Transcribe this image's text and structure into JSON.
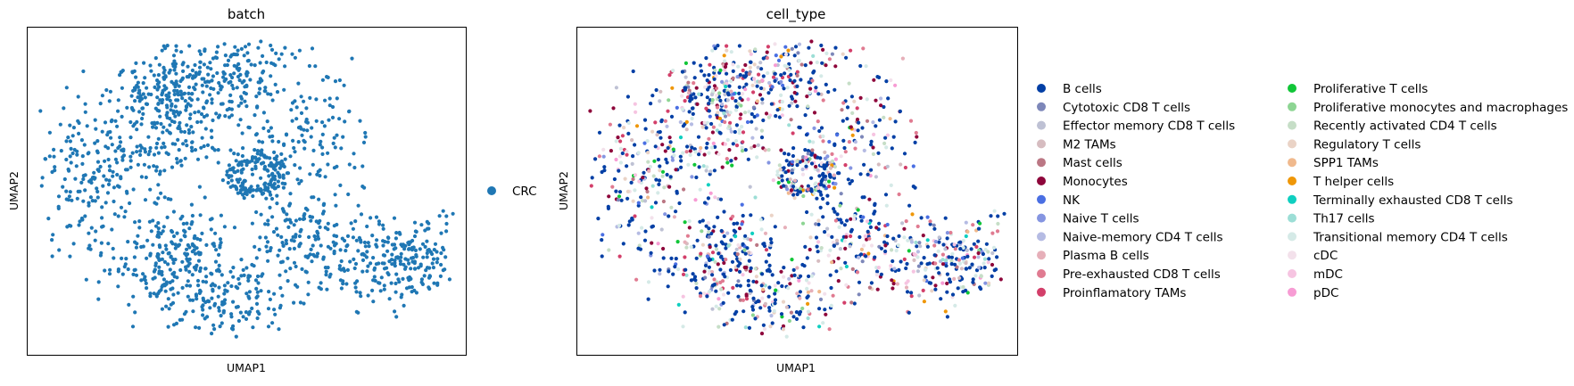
{
  "chart_data": [
    {
      "type": "scatter",
      "title": "batch",
      "xlabel": "UMAP1",
      "ylabel": "UMAP2",
      "grid": false,
      "legend": {
        "placement": "right",
        "entries": [
          {
            "label": "CRC",
            "color": "#1f77b4"
          }
        ]
      }
    },
    {
      "type": "scatter",
      "title": "cell_type",
      "xlabel": "UMAP1",
      "ylabel": "UMAP2",
      "grid": false,
      "legend": {
        "placement": "right",
        "columns": 2,
        "entries": [
          {
            "label": "B cells",
            "color": "#023fa5"
          },
          {
            "label": "Cytotoxic CD8 T cells",
            "color": "#7d87b9"
          },
          {
            "label": "Effector memory CD8 T cells",
            "color": "#bec1d4"
          },
          {
            "label": "M2 TAMs",
            "color": "#d6bcc0"
          },
          {
            "label": "Mast cells",
            "color": "#bb7784"
          },
          {
            "label": "Monocytes",
            "color": "#8e063b"
          },
          {
            "label": "NK",
            "color": "#4a6fe3"
          },
          {
            "label": "Naive T cells",
            "color": "#8595e1"
          },
          {
            "label": "Naive-memory CD4 T cells",
            "color": "#b5bbe3"
          },
          {
            "label": "Plasma B cells",
            "color": "#e6afb9"
          },
          {
            "label": "Pre-exhausted CD8 T cells",
            "color": "#e07b91"
          },
          {
            "label": "Proinflamatory TAMs",
            "color": "#d33f6a"
          },
          {
            "label": "Proliferative T cells",
            "color": "#11c638"
          },
          {
            "label": "Proliferative monocytes and macrophages",
            "color": "#8dd593"
          },
          {
            "label": "Recently activated CD4 T cells",
            "color": "#c6dec7"
          },
          {
            "label": "Regulatory T cells",
            "color": "#ead3c6"
          },
          {
            "label": "SPP1 TAMs",
            "color": "#f0b98d"
          },
          {
            "label": "T helper cells",
            "color": "#ef9708"
          },
          {
            "label": "Terminally exhausted CD8 T cells",
            "color": "#0fcfc0"
          },
          {
            "label": "Th17 cells",
            "color": "#9cded6"
          },
          {
            "label": "Transitional memory CD4 T cells",
            "color": "#d5eae7"
          },
          {
            "label": "cDC",
            "color": "#f3e1eb"
          },
          {
            "label": "mDC",
            "color": "#f6c4e1"
          },
          {
            "label": "pDC",
            "color": "#f79cd4"
          }
        ]
      }
    }
  ]
}
